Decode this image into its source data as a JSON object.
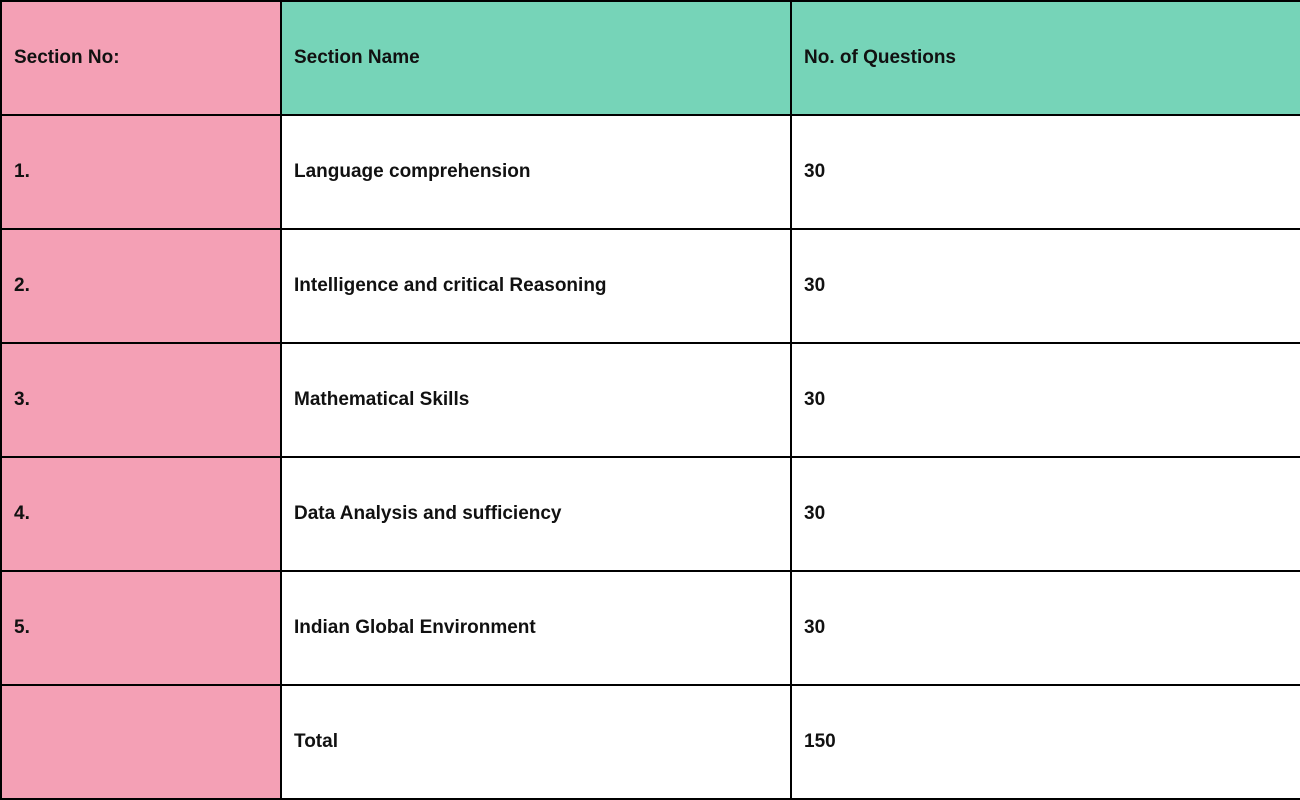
{
  "colors": {
    "section_no_column": "#f4a0b5",
    "header": "#76d4b8",
    "body": "#ffffff",
    "border": "#000000"
  },
  "table": {
    "headers": [
      "Section No:",
      "Section Name",
      "No. of Questions"
    ],
    "rows": [
      [
        "1.",
        "Language comprehension",
        "30"
      ],
      [
        "2.",
        "Intelligence and critical Reasoning",
        "30"
      ],
      [
        "3.",
        "Mathematical Skills",
        "30"
      ],
      [
        "4.",
        "Data Analysis and sufficiency",
        "30"
      ],
      [
        "5.",
        "Indian Global Environment",
        "30"
      ],
      [
        "",
        "Total",
        "150"
      ]
    ]
  }
}
